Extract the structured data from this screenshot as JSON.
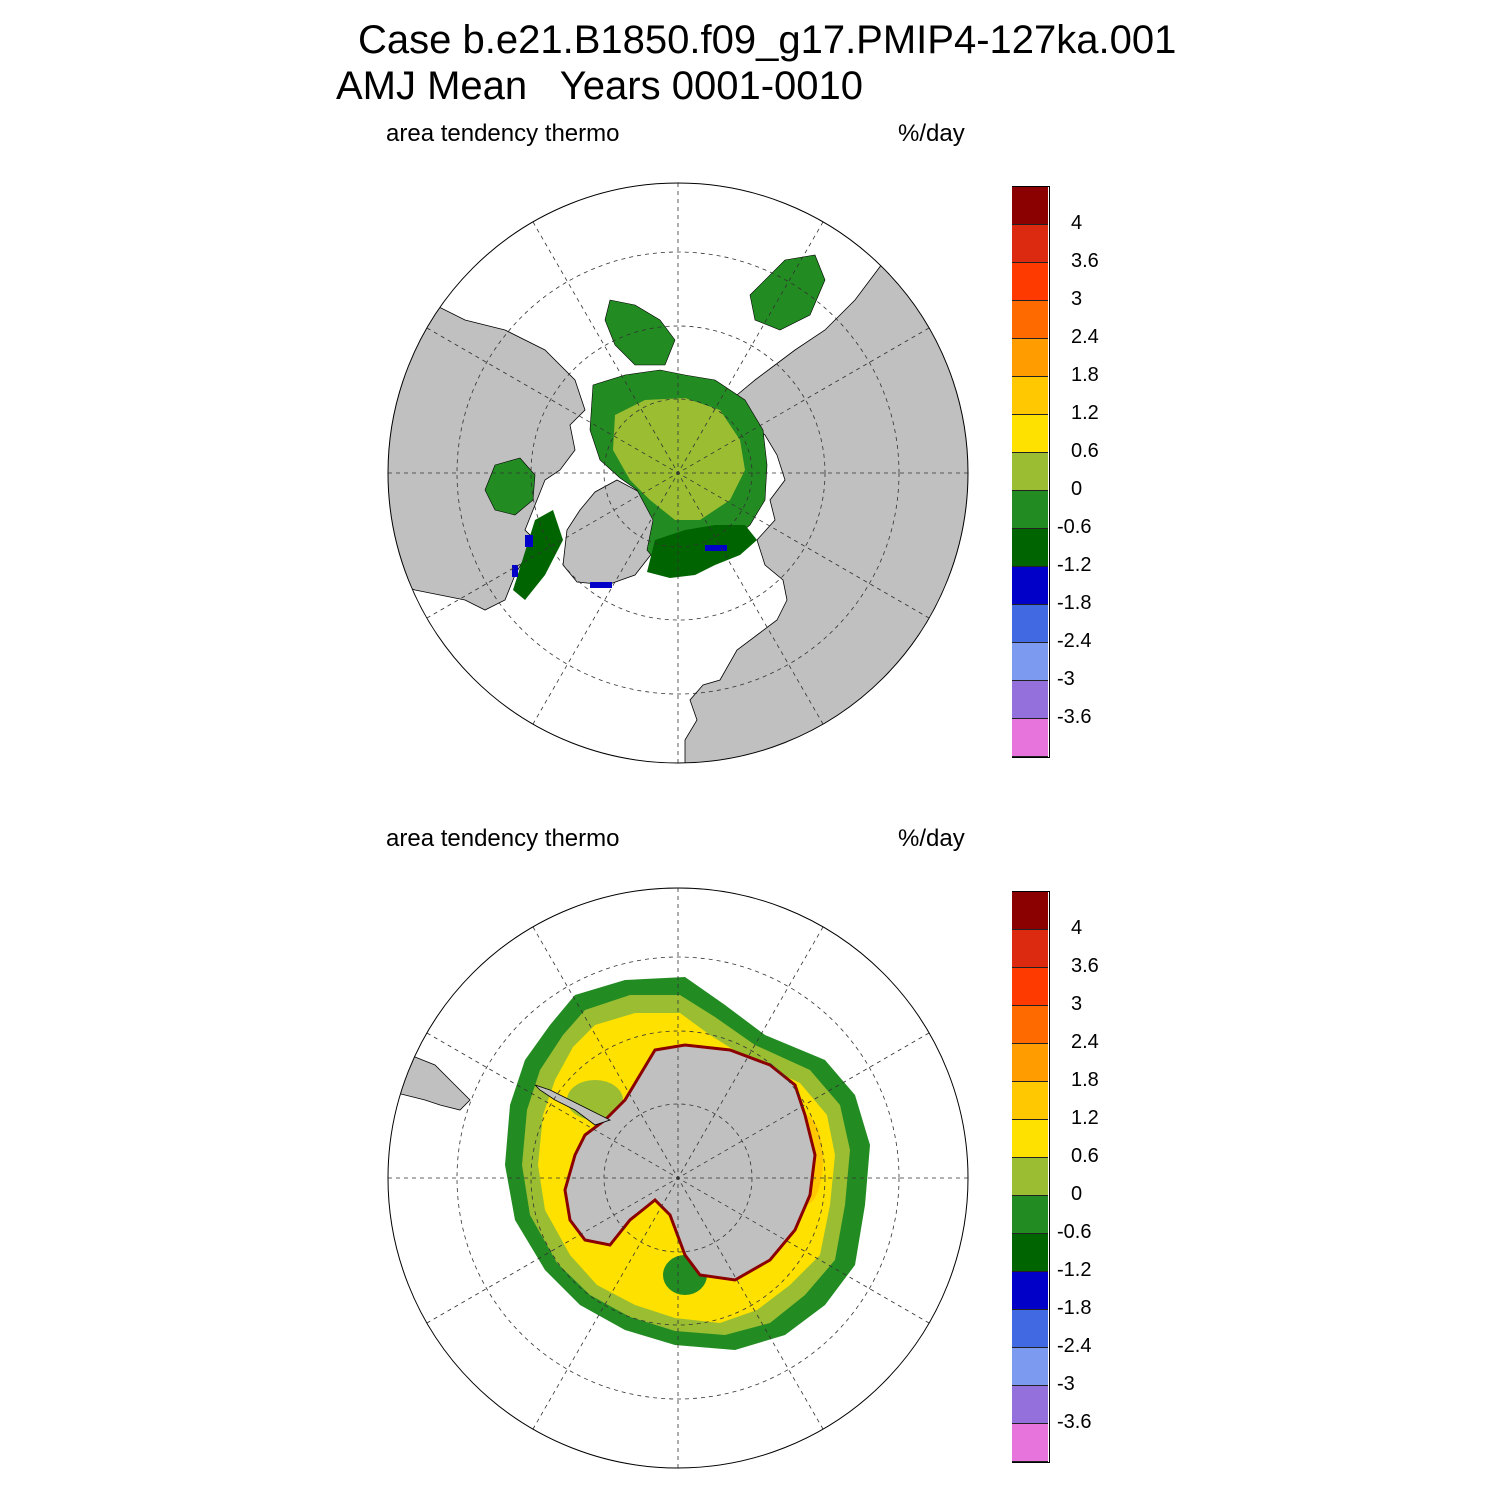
{
  "title": {
    "line1": "Case b.e21.B1850.f09_g17.PMIP4-127ka.001",
    "line2": "AMJ Mean   Years 0001-0010"
  },
  "panels": [
    {
      "id": "north",
      "hemisphere": "NH",
      "left_label": "area tendency thermo",
      "right_label": "%/day"
    },
    {
      "id": "south",
      "hemisphere": "SH",
      "left_label": "area tendency thermo",
      "right_label": "%/day"
    }
  ],
  "colorbar": {
    "levels": [
      "4",
      "3.6",
      "3",
      "2.4",
      "1.8",
      "1.2",
      "0.6",
      "0",
      "-0.6",
      "-1.2",
      "-1.8",
      "-2.4",
      "-3",
      "-3.6"
    ],
    "colors": [
      "#8b0000",
      "#dc2a10",
      "#ff3a00",
      "#ff6a00",
      "#ff9c00",
      "#ffc800",
      "#ffe100",
      "#9abd32",
      "#228b22",
      "#006400",
      "#0000c8",
      "#4169e1",
      "#7b9af0",
      "#9370db",
      "#e674dc"
    ]
  },
  "map_colors": {
    "land": "#c0c0c0",
    "ocean": "#ffffff",
    "nh_interior": "#9abd32",
    "nh_margin": "#228b22",
    "nh_edge": "#006400",
    "nh_negative_spots": "#0000c8",
    "sh_outer": "#228b22",
    "sh_outer2": "#9abd32",
    "sh_bulk": "#ffe100",
    "sh_patches": "#ffc800",
    "sh_coast_rim": "#8b0000"
  }
}
